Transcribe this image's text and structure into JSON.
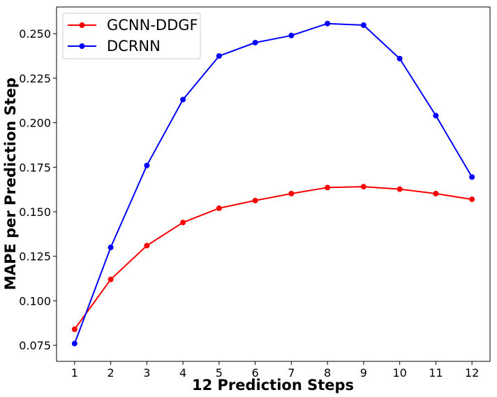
{
  "chart_data": {
    "type": "line",
    "xlabel": "12 Prediction Steps",
    "ylabel": "MAPE per Prediction Step",
    "x": [
      1,
      2,
      3,
      4,
      5,
      6,
      7,
      8,
      9,
      10,
      11,
      12
    ],
    "xlim": [
      0.5,
      12.5
    ],
    "ylim": [
      0.066,
      0.265
    ],
    "yticks": [
      "0.075",
      "0.100",
      "0.125",
      "0.150",
      "0.175",
      "0.200",
      "0.225",
      "0.250"
    ],
    "grid": false,
    "legend_position": "upper-left",
    "series": [
      {
        "name": "GCNN-DDGF",
        "color": "#ff0000",
        "values": [
          0.084,
          0.112,
          0.131,
          0.144,
          0.152,
          0.1563,
          0.1602,
          0.1636,
          0.1641,
          0.1627,
          0.1602,
          0.157
        ]
      },
      {
        "name": "DCRNN",
        "color": "#0000ff",
        "values": [
          0.076,
          0.13,
          0.176,
          0.213,
          0.2375,
          0.245,
          0.249,
          0.2557,
          0.2548,
          0.236,
          0.204,
          0.1695
        ]
      }
    ]
  }
}
